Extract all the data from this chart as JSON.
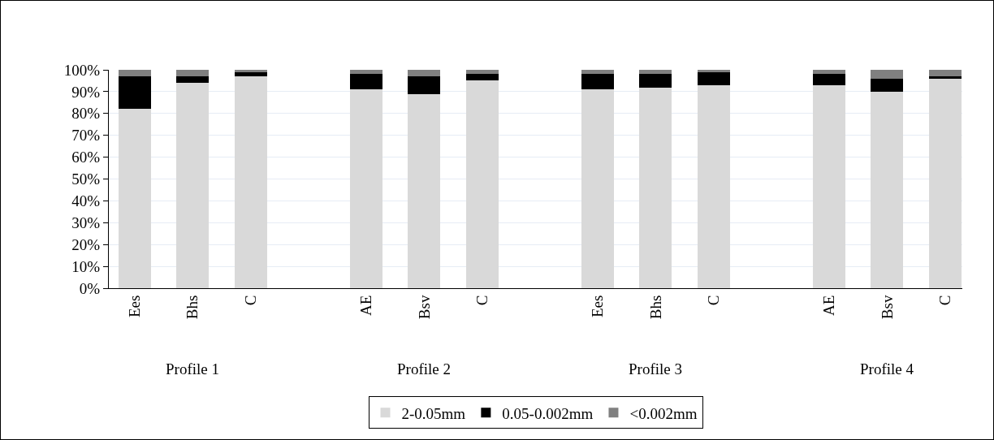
{
  "chart_data": {
    "type": "bar",
    "stacked": true,
    "categories": [
      "Ees",
      "Bhs",
      "C",
      "AE",
      "Bsv",
      "C",
      "Ees",
      "Bhs",
      "C",
      "AE",
      "Bsv",
      "C"
    ],
    "series": [
      {
        "name": "2-0.05mm",
        "color": "#d9d9d9",
        "values": [
          82,
          94,
          97,
          91,
          89,
          95,
          91,
          92,
          93,
          93,
          90,
          96
        ]
      },
      {
        "name": "0.05-0.002mm",
        "color": "#000000",
        "values": [
          15,
          3,
          2,
          7,
          8,
          3,
          7,
          6,
          6,
          5,
          6,
          1
        ]
      },
      {
        "name": "<0.002mm",
        "color": "#808080",
        "values": [
          3,
          3,
          1,
          2,
          3,
          2,
          2,
          2,
          1,
          2,
          4,
          3
        ]
      }
    ],
    "annotations": [
      "Profile 1",
      "Profile 2",
      "Profile 3",
      "Profile 4"
    ],
    "ylim": [
      0,
      100
    ],
    "yticks": [
      {
        "value": 0,
        "label": "0%"
      },
      {
        "value": 10,
        "label": "10%"
      },
      {
        "value": 20,
        "label": "20%"
      },
      {
        "value": 30,
        "label": "30%"
      },
      {
        "value": 40,
        "label": "40%"
      },
      {
        "value": 50,
        "label": "50%"
      },
      {
        "value": 60,
        "label": "60%"
      },
      {
        "value": 70,
        "label": "70%"
      },
      {
        "value": 80,
        "label": "80%"
      },
      {
        "value": 90,
        "label": "90%"
      },
      {
        "value": 100,
        "label": "100%"
      }
    ],
    "grid": "y",
    "legend": "bottom"
  }
}
